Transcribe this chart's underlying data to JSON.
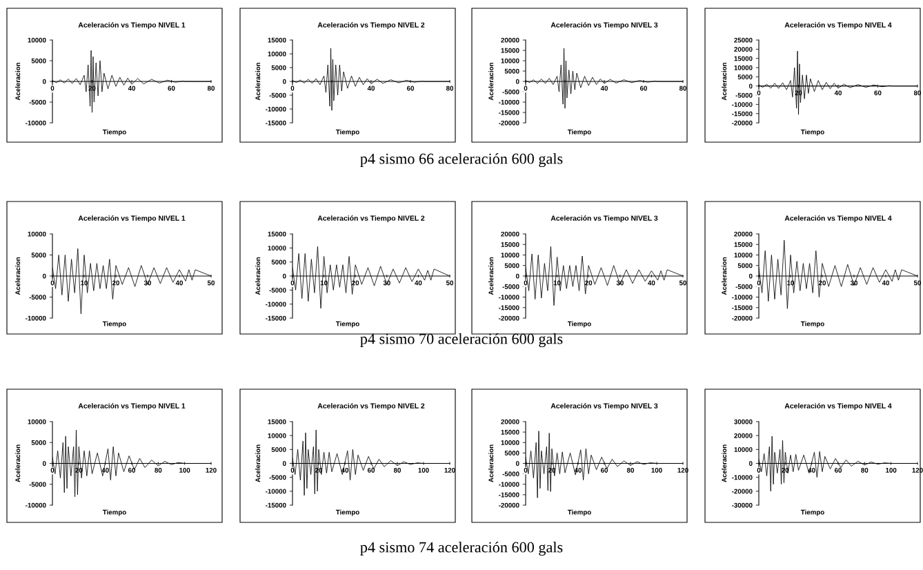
{
  "chart_data": [
    {
      "type": "line",
      "title": "Aceleración vs Tiempo NIVEL 1",
      "xlabel": "Tiempo",
      "ylabel": "Aceleracion",
      "color": "#000000",
      "xlim": [
        0,
        80
      ],
      "xticks": [
        0,
        20,
        40,
        60,
        80
      ],
      "ylim": [
        -10000,
        10000
      ],
      "yticks": [
        -10000,
        -5000,
        0,
        5000,
        10000
      ],
      "annotations": [
        "p4 sismo 66 aceleración 600 gals"
      ],
      "x": [
        0,
        2,
        4,
        6,
        8,
        10,
        12,
        14,
        16,
        17,
        18,
        19,
        19.5,
        20,
        20.5,
        21,
        22,
        23,
        24,
        25,
        26,
        28,
        30,
        32,
        34,
        36,
        38,
        40,
        43,
        46,
        50,
        54,
        58,
        62,
        66,
        67,
        80
      ],
      "values": [
        200,
        -300,
        400,
        -400,
        600,
        -500,
        700,
        -800,
        1500,
        -2500,
        4000,
        -6000,
        7500,
        -7500,
        6000,
        -5000,
        4500,
        -3500,
        5000,
        -2500,
        2000,
        -1800,
        1500,
        -1200,
        1000,
        -900,
        800,
        -700,
        700,
        -600,
        500,
        -400,
        300,
        -200,
        100,
        0,
        0
      ]
    },
    {
      "type": "line",
      "title": "Aceleración vs Tiempo NIVEL 2",
      "xlabel": "Tiempo",
      "ylabel": "Aceleracion",
      "color": "#000000",
      "xlim": [
        0,
        80
      ],
      "xticks": [
        0,
        {
          "value": 20,
          "label": null
        },
        40,
        60,
        80
      ],
      "ylim": [
        -15000,
        15000
      ],
      "yticks": [
        -15000,
        -10000,
        -5000,
        0,
        5000,
        10000,
        15000
      ],
      "x": [
        0,
        2,
        4,
        6,
        8,
        10,
        12,
        14,
        16,
        17,
        18,
        19,
        19.5,
        20,
        20.5,
        21,
        22,
        23,
        24,
        25,
        26,
        28,
        30,
        32,
        34,
        36,
        38,
        40,
        43,
        46,
        50,
        54,
        58,
        62,
        66,
        67,
        80
      ],
      "values": [
        300,
        -400,
        500,
        -600,
        800,
        -700,
        1000,
        -1200,
        2000,
        -4000,
        6000,
        -9000,
        12000,
        -10500,
        8000,
        -7000,
        6000,
        -5000,
        6000,
        -3500,
        3500,
        -2500,
        2000,
        -1800,
        1500,
        -1200,
        1000,
        -900,
        800,
        -700,
        600,
        -500,
        400,
        -300,
        100,
        0,
        0
      ]
    },
    {
      "type": "line",
      "title": "Aceleración vs Tiempo NIVEL 3",
      "xlabel": "Tiempo",
      "ylabel": "Aceleracion",
      "color": "#000000",
      "xlim": [
        0,
        80
      ],
      "xticks": [
        0,
        {
          "value": 20,
          "label": null
        },
        40,
        60,
        80
      ],
      "ylim": [
        -20000,
        20000
      ],
      "yticks": [
        -20000,
        -15000,
        -10000,
        -5000,
        0,
        5000,
        10000,
        15000,
        20000
      ],
      "x": [
        0,
        2,
        4,
        6,
        8,
        10,
        12,
        14,
        16,
        17,
        18,
        19,
        19.5,
        20,
        20.5,
        21,
        22,
        23,
        24,
        25,
        26,
        28,
        30,
        32,
        34,
        36,
        38,
        40,
        43,
        46,
        50,
        54,
        58,
        62,
        66,
        67,
        80
      ],
      "values": [
        400,
        -500,
        800,
        -1000,
        1200,
        -1000,
        1500,
        -1500,
        2500,
        -5000,
        8000,
        -11000,
        16000,
        -13000,
        10000,
        -8000,
        5500,
        -6000,
        5000,
        -4000,
        4000,
        -3000,
        2500,
        -2000,
        2000,
        -1500,
        1200,
        -1000,
        1000,
        -800,
        800,
        -600,
        500,
        -400,
        200,
        0,
        0
      ]
    },
    {
      "type": "line",
      "title": "Aceleración vs Tiempo NIVEL 4",
      "xlabel": "Tiempo",
      "ylabel": "Aceleracion",
      "color": "#000000",
      "xlim": [
        0,
        80
      ],
      "xticks": [
        0,
        20,
        40,
        60,
        80
      ],
      "ylim": [
        -20000,
        25000
      ],
      "yticks": [
        -20000,
        -15000,
        -10000,
        -5000,
        0,
        5000,
        10000,
        15000,
        20000,
        25000
      ],
      "x": [
        0,
        2,
        4,
        6,
        8,
        10,
        12,
        14,
        16,
        17,
        18,
        19,
        19.5,
        20,
        20.5,
        21,
        22,
        23,
        24,
        25,
        26,
        28,
        30,
        32,
        34,
        36,
        38,
        40,
        43,
        46,
        50,
        54,
        58,
        62,
        66,
        67,
        80
      ],
      "values": [
        500,
        -700,
        1000,
        -1200,
        1500,
        -1300,
        1800,
        -2000,
        3000,
        -6000,
        10000,
        -12000,
        19000,
        -15500,
        12000,
        -9000,
        6000,
        -7000,
        6000,
        -4000,
        4000,
        -3000,
        3000,
        -2000,
        2000,
        -1500,
        1500,
        -1200,
        1000,
        -900,
        800,
        -700,
        600,
        -400,
        200,
        0,
        0
      ]
    },
    {
      "type": "line",
      "title": "Aceleración vs Tiempo NIVEL 1",
      "xlabel": "Tiempo",
      "ylabel": "Aceleracion",
      "color": "#000000",
      "xlim": [
        0,
        50
      ],
      "xticks": [
        0,
        10,
        20,
        30,
        40,
        50
      ],
      "ylim": [
        -10000,
        10000
      ],
      "yticks": [
        -10000,
        -5000,
        0,
        5000,
        10000
      ],
      "annotations": [
        "p4 sismo 70 aceleración 600 gals"
      ],
      "x": [
        0,
        1,
        2,
        3,
        4,
        5,
        6,
        7,
        8,
        9,
        10,
        11,
        12,
        13,
        14,
        15,
        16,
        17,
        18,
        19,
        20,
        22,
        24,
        26,
        28,
        30,
        32,
        34,
        36,
        38,
        40,
        42,
        43,
        44,
        45,
        50
      ],
      "values": [
        2000,
        -3000,
        5000,
        -4500,
        5000,
        -6000,
        4000,
        -4000,
        6500,
        -9000,
        5000,
        -4000,
        3000,
        -3500,
        3000,
        -3000,
        2500,
        -3000,
        4000,
        -5500,
        2500,
        -2000,
        2000,
        -2500,
        2500,
        -2000,
        2000,
        -1800,
        2000,
        -1500,
        1500,
        -1200,
        1500,
        -1000,
        1500,
        0
      ]
    },
    {
      "type": "line",
      "title": "Aceleración vs Tiempo NIVEL 2",
      "xlabel": "Tiempo",
      "ylabel": "Aceleracion",
      "color": "#000000",
      "xlim": [
        0,
        50
      ],
      "xticks": [
        0,
        10,
        20,
        30,
        40,
        50
      ],
      "ylim": [
        -15000,
        15000
      ],
      "yticks": [
        -15000,
        -10000,
        -5000,
        0,
        5000,
        10000,
        15000
      ],
      "x": [
        0,
        1,
        2,
        3,
        4,
        5,
        6,
        7,
        8,
        9,
        10,
        11,
        12,
        13,
        14,
        15,
        16,
        17,
        18,
        19,
        20,
        22,
        24,
        26,
        28,
        30,
        32,
        34,
        36,
        38,
        40,
        42,
        43,
        44,
        45,
        50
      ],
      "values": [
        3000,
        -5000,
        8000,
        -8000,
        8000,
        -9000,
        6000,
        -6000,
        10500,
        -11500,
        7000,
        -6000,
        4000,
        -5000,
        4000,
        -4000,
        4000,
        -6000,
        7000,
        -6500,
        4000,
        -3000,
        3000,
        -3500,
        3500,
        -3000,
        2500,
        -2500,
        3000,
        -2000,
        2500,
        -1500,
        2000,
        -1500,
        2500,
        0
      ]
    },
    {
      "type": "line",
      "title": "Aceleración vs Tiempo NIVEL 3",
      "xlabel": "Tiempo",
      "ylabel": "Aceleracion",
      "color": "#000000",
      "xlim": [
        0,
        50
      ],
      "xticks": [
        0,
        10,
        20,
        30,
        40,
        50
      ],
      "ylim": [
        -20000,
        20000
      ],
      "yticks": [
        -20000,
        -15000,
        -10000,
        -5000,
        0,
        5000,
        10000,
        15000,
        20000
      ],
      "x": [
        0,
        1,
        2,
        3,
        4,
        5,
        6,
        7,
        8,
        9,
        10,
        11,
        12,
        13,
        14,
        15,
        16,
        17,
        18,
        19,
        20,
        22,
        24,
        26,
        28,
        30,
        32,
        34,
        36,
        38,
        40,
        42,
        43,
        44,
        45,
        50
      ],
      "values": [
        4000,
        -7000,
        10500,
        -11000,
        10000,
        -10500,
        6000,
        -7000,
        14000,
        -14000,
        9000,
        -7000,
        5000,
        -6000,
        5000,
        -5000,
        5000,
        -7000,
        9500,
        -8500,
        5000,
        -4000,
        4000,
        -4500,
        5000,
        -4000,
        3000,
        -3500,
        3000,
        -2500,
        2500,
        -2000,
        2500,
        -2000,
        3000,
        0
      ]
    },
    {
      "type": "line",
      "title": "Aceleración vs Tiempo NIVEL 4",
      "xlabel": "Tiempo",
      "ylabel": "Aceleracion",
      "color": "#000000",
      "xlim": [
        0,
        50
      ],
      "xticks": [
        0,
        10,
        20,
        30,
        40,
        50
      ],
      "ylim": [
        -20000,
        20000
      ],
      "yticks": [
        -20000,
        -15000,
        -10000,
        -5000,
        0,
        5000,
        10000,
        15000,
        20000
      ],
      "x": [
        0,
        1,
        2,
        3,
        4,
        5,
        6,
        7,
        8,
        9,
        10,
        11,
        12,
        13,
        14,
        15,
        16,
        17,
        18,
        19,
        20,
        22,
        24,
        26,
        28,
        30,
        32,
        34,
        36,
        38,
        40,
        42,
        43,
        44,
        45,
        50
      ],
      "values": [
        4000,
        -8000,
        12000,
        -12000,
        10000,
        -11000,
        8000,
        -9000,
        17000,
        -15500,
        10000,
        -8000,
        7000,
        -7000,
        6000,
        -6000,
        6000,
        -8000,
        12000,
        -10000,
        6000,
        -5000,
        5000,
        -5000,
        5500,
        -4500,
        4000,
        -4000,
        4000,
        -3000,
        3000,
        -2500,
        3000,
        -2000,
        3000,
        0
      ]
    },
    {
      "type": "line",
      "title": "Aceleración vs Tiempo NIVEL 1",
      "xlabel": "Tiempo",
      "ylabel": "Aceleracion",
      "color": "#000000",
      "xlim": [
        0,
        120
      ],
      "xticks": [
        0,
        20,
        40,
        60,
        80,
        100,
        120
      ],
      "ylim": [
        -10000,
        10000
      ],
      "yticks": [
        -10000,
        -5000,
        0,
        5000,
        10000
      ],
      "annotations": [
        "p4 sismo 74 aceleración 600 gals"
      ],
      "x": [
        0,
        2,
        4,
        6,
        8,
        9,
        10,
        11,
        12,
        14,
        16,
        17,
        18,
        19,
        20,
        22,
        24,
        26,
        28,
        30,
        34,
        38,
        42,
        44,
        46,
        48,
        50,
        54,
        58,
        62,
        66,
        70,
        75,
        80,
        85,
        90,
        95,
        100,
        120
      ],
      "values": [
        1500,
        -2500,
        3000,
        -3500,
        5000,
        -7000,
        6500,
        -6000,
        4000,
        -3000,
        4000,
        -8000,
        8000,
        -7500,
        4000,
        -3500,
        3000,
        -3000,
        3000,
        -2500,
        2500,
        -3000,
        3500,
        -4000,
        4000,
        -3000,
        2500,
        -2000,
        1800,
        -1500,
        1200,
        -1000,
        800,
        -600,
        500,
        -300,
        200,
        0,
        0
      ]
    },
    {
      "type": "line",
      "title": "Aceleración vs Tiempo NIVEL 2",
      "xlabel": "Tiempo",
      "ylabel": "Aceleracion",
      "color": "#000000",
      "xlim": [
        0,
        120
      ],
      "xticks": [
        0,
        20,
        40,
        60,
        80,
        100,
        120
      ],
      "ylim": [
        -15000,
        15000
      ],
      "yticks": [
        -15000,
        -10000,
        -5000,
        0,
        5000,
        10000,
        15000
      ],
      "x": [
        0,
        2,
        4,
        6,
        8,
        9,
        10,
        11,
        12,
        14,
        16,
        17,
        18,
        19,
        20,
        22,
        24,
        26,
        28,
        30,
        34,
        38,
        42,
        44,
        46,
        48,
        50,
        54,
        58,
        62,
        66,
        70,
        75,
        80,
        85,
        90,
        95,
        100,
        120
      ],
      "values": [
        2000,
        -4000,
        5000,
        -6000,
        8000,
        -11500,
        11000,
        -9000,
        5000,
        -4000,
        6000,
        -11000,
        12000,
        -10000,
        5000,
        -4000,
        4000,
        -3500,
        4000,
        -3000,
        3500,
        -4000,
        4500,
        -6000,
        5000,
        -4000,
        3000,
        -2500,
        2500,
        -2000,
        1500,
        -1200,
        1000,
        -800,
        600,
        -400,
        200,
        0,
        0
      ]
    },
    {
      "type": "line",
      "title": "Aceleración vs Tiempo NIVEL 3",
      "xlabel": "Tiempo",
      "ylabel": "Aceleracion",
      "color": "#000000",
      "xlim": [
        0,
        120
      ],
      "xticks": [
        0,
        20,
        40,
        60,
        80,
        100,
        120
      ],
      "ylim": [
        -20000,
        20000
      ],
      "yticks": [
        -20000,
        -15000,
        -10000,
        -5000,
        0,
        5000,
        10000,
        15000,
        20000
      ],
      "x": [
        0,
        2,
        4,
        6,
        8,
        9,
        10,
        11,
        12,
        14,
        16,
        17,
        18,
        19,
        20,
        22,
        24,
        26,
        28,
        30,
        34,
        38,
        42,
        44,
        46,
        48,
        50,
        54,
        58,
        62,
        66,
        70,
        75,
        80,
        85,
        90,
        95,
        100,
        120
      ],
      "values": [
        3000,
        -5000,
        6000,
        -7000,
        10000,
        -16500,
        15500,
        -12000,
        6000,
        -5000,
        8000,
        -13000,
        14500,
        -13500,
        7000,
        -6000,
        5000,
        -5000,
        5500,
        -4500,
        5000,
        -5500,
        6500,
        -8000,
        7000,
        -5000,
        4000,
        -3000,
        3000,
        -2500,
        2000,
        -1500,
        1200,
        -1000,
        800,
        -500,
        300,
        0,
        0
      ]
    },
    {
      "type": "line",
      "title": "Aceleración vs Tiempo NIVEL 4",
      "xlabel": "Tiempo",
      "ylabel": "Aceleracion",
      "color": "#000000",
      "xlim": [
        0,
        120
      ],
      "xticks": [
        0,
        20,
        40,
        60,
        80,
        100,
        120
      ],
      "ylim": [
        -30000,
        30000
      ],
      "yticks": [
        -30000,
        -20000,
        -10000,
        0,
        10000,
        20000,
        30000
      ],
      "x": [
        0,
        2,
        4,
        6,
        8,
        9,
        10,
        11,
        12,
        14,
        16,
        17,
        18,
        19,
        20,
        22,
        24,
        26,
        28,
        30,
        34,
        38,
        42,
        44,
        46,
        48,
        50,
        54,
        58,
        62,
        66,
        70,
        75,
        80,
        85,
        90,
        95,
        100,
        120
      ],
      "values": [
        3000,
        -6000,
        7000,
        -9000,
        12000,
        -20000,
        19500,
        -15000,
        8000,
        -7000,
        10000,
        -15000,
        16500,
        -14000,
        8000,
        -7000,
        6000,
        -6000,
        6500,
        -5000,
        6000,
        -7000,
        8000,
        -10000,
        8500,
        -6000,
        5000,
        -4000,
        3500,
        -3000,
        2500,
        -2000,
        1500,
        -1200,
        1000,
        -600,
        400,
        0,
        0
      ]
    }
  ]
}
